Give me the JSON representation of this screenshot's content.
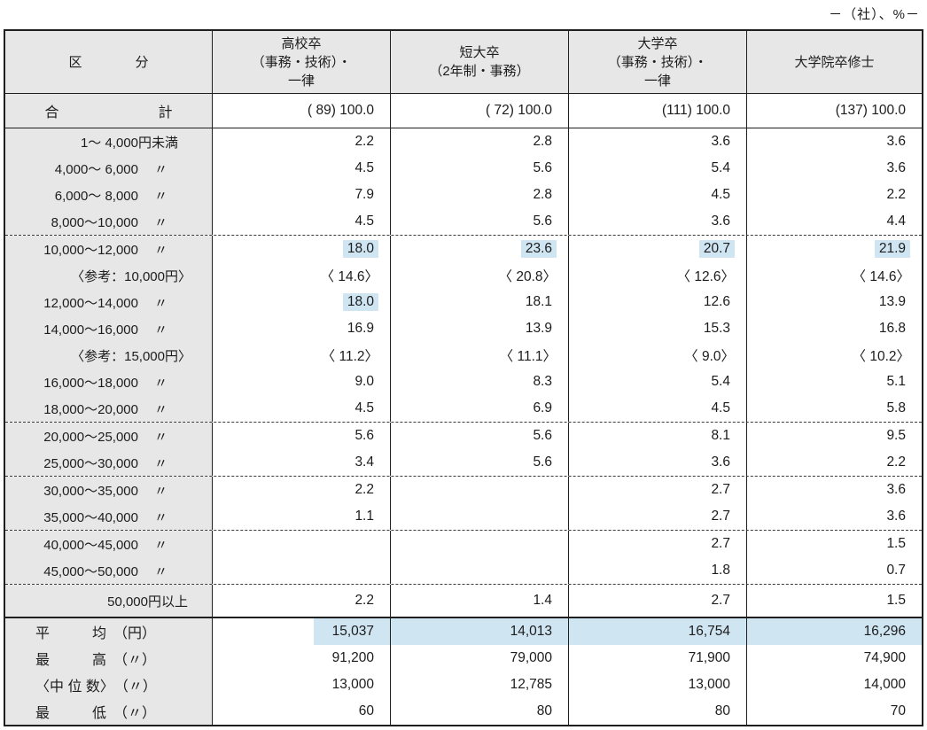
{
  "unit_label": "－（社）、%－",
  "colors": {
    "highlight_blue": "#cfe5f2",
    "header_gray": "#e7e7e7",
    "border_black": "#1f1f1f"
  },
  "table": {
    "header": {
      "category": "区　　　　分",
      "columns": [
        "高校卒\n（事務・技術）・\n一律",
        "短大卒\n（2年制・事務）",
        "大学卒\n（事務・技術）・\n一律",
        "大学院卒修士"
      ]
    },
    "total_row": {
      "label": "合　　　　　　　計",
      "values": [
        "( 89)  100.0",
        "( 72)  100.0",
        "(111)  100.0",
        "(137)  100.0"
      ]
    },
    "blocks": [
      {
        "rows": [
          {
            "type": "range",
            "num": "1～ 4,000",
            "suffix": "円未満",
            "values": [
              "2.2",
              "2.8",
              "3.6",
              "3.6"
            ]
          },
          {
            "type": "range",
            "num": "4,000～ 6,000",
            "suffix": "〃",
            "values": [
              "4.5",
              "5.6",
              "5.4",
              "3.6"
            ]
          },
          {
            "type": "range",
            "num": "6,000～ 8,000",
            "suffix": "〃",
            "values": [
              "7.9",
              "2.8",
              "4.5",
              "2.2"
            ]
          },
          {
            "type": "range",
            "num": "8,000～10,000",
            "suffix": "〃",
            "values": [
              "4.5",
              "5.6",
              "3.6",
              "4.4"
            ]
          }
        ]
      },
      {
        "rows": [
          {
            "type": "range",
            "num": "10,000～12,000",
            "suffix": "〃",
            "values": [
              "18.0",
              "23.6",
              "20.7",
              "21.9"
            ],
            "hl": [
              0,
              1,
              2,
              3
            ]
          },
          {
            "type": "ref",
            "text": "〈参考：10,000円〉",
            "values": [
              "〈 14.6〉",
              "〈 20.8〉",
              "〈 12.6〉",
              "〈 14.6〉"
            ]
          },
          {
            "type": "range",
            "num": "12,000～14,000",
            "suffix": "〃",
            "values": [
              "18.0",
              "18.1",
              "12.6",
              "13.9"
            ],
            "hl": [
              0
            ]
          },
          {
            "type": "range",
            "num": "14,000～16,000",
            "suffix": "〃",
            "values": [
              "16.9",
              "13.9",
              "15.3",
              "16.8"
            ]
          },
          {
            "type": "ref",
            "text": "〈参考：15,000円〉",
            "values": [
              "〈 11.2〉",
              "〈 11.1〉",
              "〈  9.0〉",
              "〈 10.2〉"
            ]
          },
          {
            "type": "range",
            "num": "16,000～18,000",
            "suffix": "〃",
            "values": [
              "9.0",
              "8.3",
              "5.4",
              "5.1"
            ]
          },
          {
            "type": "range",
            "num": "18,000～20,000",
            "suffix": "〃",
            "values": [
              "4.5",
              "6.9",
              "4.5",
              "5.8"
            ]
          }
        ]
      },
      {
        "rows": [
          {
            "type": "range",
            "num": "20,000～25,000",
            "suffix": "〃",
            "values": [
              "5.6",
              "5.6",
              "8.1",
              "9.5"
            ]
          },
          {
            "type": "range",
            "num": "25,000～30,000",
            "suffix": "〃",
            "values": [
              "3.4",
              "5.6",
              "3.6",
              "2.2"
            ]
          }
        ]
      },
      {
        "rows": [
          {
            "type": "range",
            "num": "30,000～35,000",
            "suffix": "〃",
            "values": [
              "2.2",
              "",
              "2.7",
              "3.6"
            ]
          },
          {
            "type": "range",
            "num": "35,000～40,000",
            "suffix": "〃",
            "values": [
              "1.1",
              "",
              "2.7",
              "3.6"
            ]
          }
        ]
      },
      {
        "rows": [
          {
            "type": "range",
            "num": "40,000～45,000",
            "suffix": "〃",
            "values": [
              "",
              "",
              "2.7",
              "1.5"
            ]
          },
          {
            "type": "range",
            "num": "45,000～50,000",
            "suffix": "〃",
            "values": [
              "",
              "",
              "1.8",
              "0.7"
            ]
          }
        ]
      },
      {
        "rows": [
          {
            "type": "above",
            "text": "50,000円以上",
            "values": [
              "2.2",
              "1.4",
              "2.7",
              "1.5"
            ]
          }
        ]
      }
    ],
    "summary": {
      "rows": [
        {
          "label": "平　　　均　（円）",
          "values": [
            "15,037",
            "14,013",
            "16,754",
            "16,296"
          ],
          "row_highlight": true
        },
        {
          "label": "最　　　高　（〃）",
          "values": [
            "91,200",
            "79,000",
            "71,900",
            "74,900"
          ]
        },
        {
          "label": "〈中 位 数〉　（〃）",
          "values": [
            "13,000",
            "12,785",
            "13,000",
            "14,000"
          ]
        },
        {
          "label": "最　　　低　（〃）",
          "values": [
            "60",
            "80",
            "80",
            "70"
          ]
        }
      ]
    }
  }
}
